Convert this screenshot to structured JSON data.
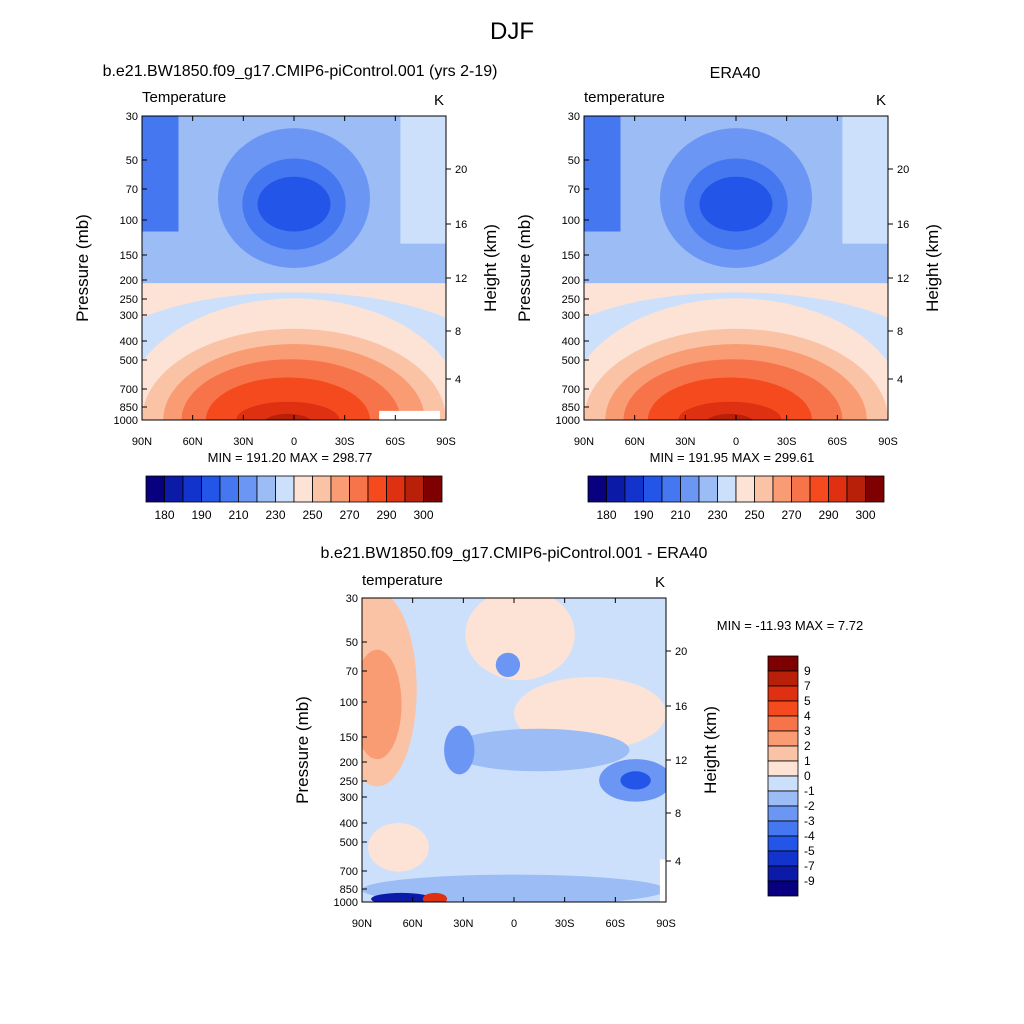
{
  "main_title": "DJF",
  "colors": {
    "full": [
      "#08007f",
      "#0c1aa8",
      "#1233cc",
      "#2255e8",
      "#4477f0",
      "#6b96f3",
      "#9cbcf6",
      "#cde0fb",
      "#fde3d5",
      "#fbc3a6",
      "#f99c74",
      "#f7744a",
      "#f54a1e",
      "#e03012",
      "#b8200a",
      "#7f0000"
    ],
    "diff": [
      "#08007f",
      "#0c1aa8",
      "#1233cc",
      "#2255e8",
      "#4477f0",
      "#6b96f3",
      "#9cbcf6",
      "#cde0fb",
      "#fde3d5",
      "#fbc3a6",
      "#f99c74",
      "#f7744a",
      "#f54a1e",
      "#e03012",
      "#b8200a",
      "#7f0000"
    ]
  },
  "chart_data": [
    {
      "type": "heatmap",
      "title": "b.e21.BW1850.f09_g17.CMIP6-piControl.001 (yrs 2-19)",
      "left_label": "Temperature",
      "right_label": "K",
      "xlabel": "",
      "ylabel": "Pressure (mb)",
      "ylabel_right": "Height (km)",
      "x_ticks": [
        "90N",
        "60N",
        "30N",
        "0",
        "30S",
        "60S",
        "90S"
      ],
      "y_ticks": [
        "30",
        "50",
        "70",
        "100",
        "150",
        "200",
        "250",
        "300",
        "400",
        "500",
        "700",
        "850",
        "1000"
      ],
      "y_ticks_right": [
        "4",
        "8",
        "12",
        "16",
        "20"
      ],
      "min_max": "MIN = 191.20  MAX = 298.77",
      "colorbar_labels": [
        "180",
        "190",
        "210",
        "230",
        "250",
        "270",
        "290",
        "300"
      ]
    },
    {
      "type": "heatmap",
      "title": "ERA40",
      "left_label": "temperature",
      "right_label": "K",
      "xlabel": "",
      "ylabel": "Pressure (mb)",
      "ylabel_right": "Height (km)",
      "x_ticks": [
        "90N",
        "60N",
        "30N",
        "0",
        "30S",
        "60S",
        "90S"
      ],
      "y_ticks": [
        "30",
        "50",
        "70",
        "100",
        "150",
        "200",
        "250",
        "300",
        "400",
        "500",
        "700",
        "850",
        "1000"
      ],
      "y_ticks_right": [
        "4",
        "8",
        "12",
        "16",
        "20"
      ],
      "min_max": "MIN = 191.95  MAX = 299.61",
      "colorbar_labels": [
        "180",
        "190",
        "210",
        "230",
        "250",
        "270",
        "290",
        "300"
      ]
    },
    {
      "type": "heatmap",
      "title": "b.e21.BW1850.f09_g17.CMIP6-piControl.001 - ERA40",
      "left_label": "temperature",
      "right_label": "K",
      "xlabel": "",
      "ylabel": "Pressure (mb)",
      "ylabel_right": "Height (km)",
      "x_ticks": [
        "90N",
        "60N",
        "30N",
        "0",
        "30S",
        "60S",
        "90S"
      ],
      "y_ticks": [
        "30",
        "50",
        "70",
        "100",
        "150",
        "200",
        "250",
        "300",
        "400",
        "500",
        "700",
        "850",
        "1000"
      ],
      "y_ticks_right": [
        "4",
        "8",
        "12",
        "16",
        "20"
      ],
      "min_max": "MIN = -11.93  MAX =   7.72",
      "colorbar_labels": [
        "9",
        "7",
        "5",
        "4",
        "3",
        "2",
        "1",
        "0",
        "-1",
        "-2",
        "-3",
        "-4",
        "-5",
        "-7",
        "-9"
      ]
    }
  ]
}
